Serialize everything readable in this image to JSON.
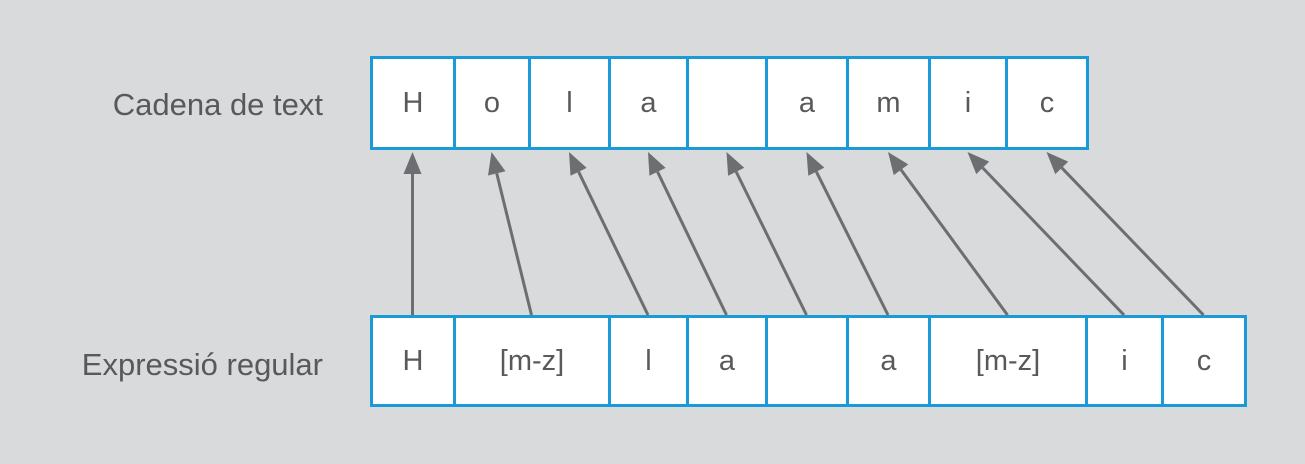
{
  "labels": {
    "text_string": "Cadena de text",
    "regex": "Expressió regular"
  },
  "text_string": [
    "H",
    "o",
    "l",
    "a",
    "",
    "a",
    "m",
    "i",
    "c"
  ],
  "regex_tokens": [
    "H",
    "[m-z]",
    "l",
    "a",
    "",
    "a",
    "[m-z]",
    "i",
    "c"
  ],
  "colors": {
    "background": "#d9dadb",
    "box_border": "#1a9ad6",
    "box_fill": "#ffffff",
    "text": "#58595b",
    "arrow": "#6d6e71"
  },
  "mapping": [
    [
      0,
      0
    ],
    [
      1,
      1
    ],
    [
      2,
      2
    ],
    [
      3,
      3
    ],
    [
      4,
      4
    ],
    [
      5,
      5
    ],
    [
      6,
      6
    ],
    [
      7,
      7
    ],
    [
      8,
      8
    ]
  ]
}
